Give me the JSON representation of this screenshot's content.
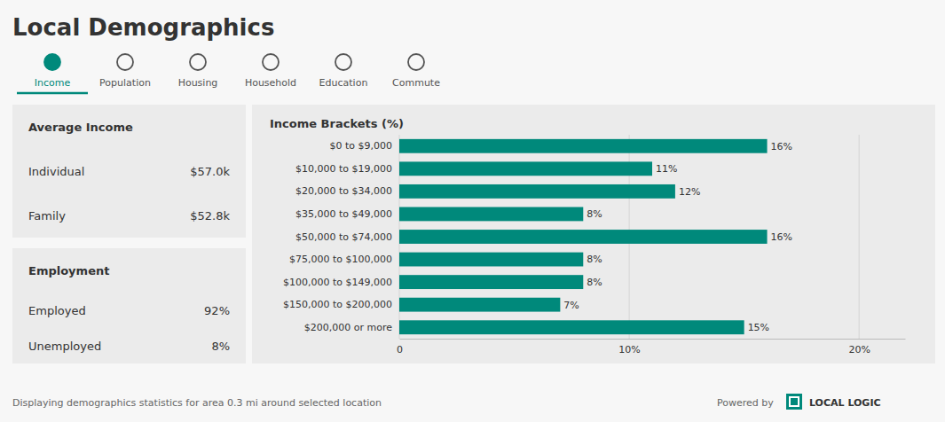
{
  "page": {
    "title": "Local Demographics",
    "nav_items": [
      "Income",
      "Population",
      "Housing",
      "Household",
      "Education",
      "Commute"
    ],
    "nav_active": "Income",
    "cards": [
      {
        "title": "Average Income",
        "rows": [
          {
            "label": "Individual",
            "value": "$57.0k"
          },
          {
            "label": "Family",
            "value": "$52.8k"
          }
        ]
      },
      {
        "title": "Employment",
        "rows": [
          {
            "label": "Employed",
            "value": "92%"
          },
          {
            "label": "Unemployed",
            "value": "8%"
          }
        ]
      }
    ],
    "footer_text": "Displaying demographics statistics for area 0.3 mi around selected location",
    "powered_by_text": "Powered by",
    "local_logic_text": "LOCAL LOGIC",
    "bg_color": "#f7f7f7",
    "card_bg": "#ebebeb",
    "dark_text": "#333333",
    "medium_text": "#666666",
    "nav_icon_color": "#555555",
    "accent_color": "#00897b"
  },
  "chart_data": {
    "type": "bar",
    "orientation": "horizontal",
    "title": "Income Brackets (%)",
    "categories": [
      "$0 to $9,000",
      "$10,000 to $19,000",
      "$20,000 to $34,000",
      "$35,000 to $49,000",
      "$50,000 to $74,000",
      "$75,000 to $100,000",
      "$100,000 to $149,000",
      "$150,000 to $200,000",
      "$200,000 or more"
    ],
    "values": [
      16,
      11,
      12,
      8,
      16,
      8,
      8,
      7,
      15
    ],
    "value_labels": [
      "16%",
      "11%",
      "12%",
      "8%",
      "16%",
      "8%",
      "8%",
      "7%",
      "15%"
    ],
    "data_labels": true,
    "color": "#00897b",
    "xlim": [
      0,
      22
    ],
    "xticks": [
      0,
      {
        "value": 10,
        "label": "10%"
      },
      {
        "value": 20,
        "label": "20%"
      }
    ],
    "grid": true
  }
}
